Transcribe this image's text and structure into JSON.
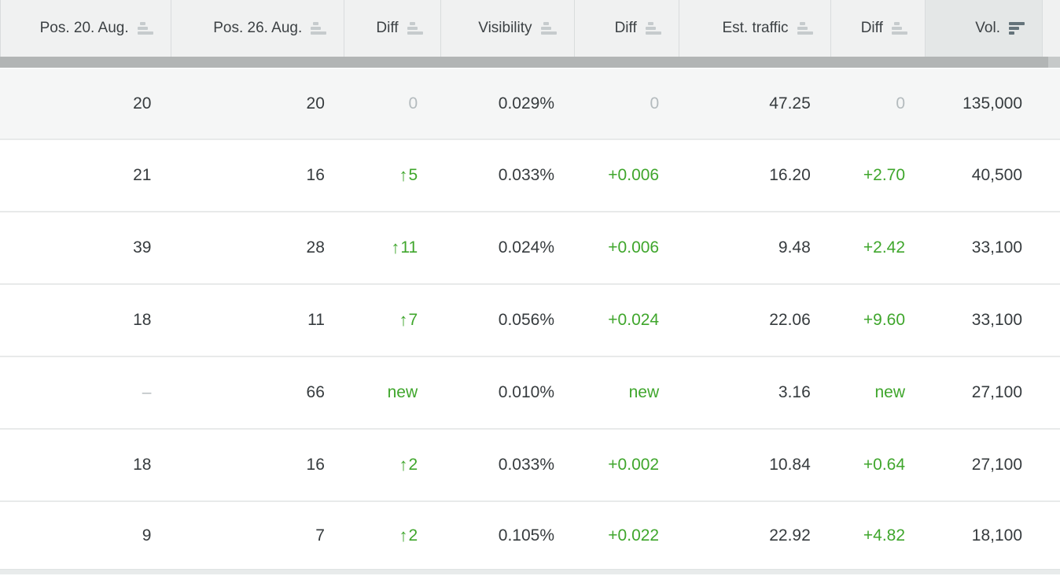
{
  "colors": {
    "positive_green": "#3fa62c",
    "muted_gray": "#b4bbbe",
    "header_bg": "#f0f1f1",
    "active_column_header_bg": "#e4e7e7",
    "highlighted_row_bg": "#f5f6f6",
    "scrollbar_thumb": "#b2b5b5",
    "text_dark": "#363b3e"
  },
  "icons": {
    "up_arrow_glyph": "↑",
    "inactive_sort_icon": "sort-ascending-bars",
    "active_sort_icon": "sort-descending-bars"
  },
  "table": {
    "columns": [
      {
        "label": "Pos. 20. Aug.",
        "sort": "inactive",
        "cell_name": "pos-aug20-cell"
      },
      {
        "label": "Pos. 26. Aug.",
        "sort": "inactive",
        "cell_name": "pos-aug26-cell"
      },
      {
        "label": "Diff",
        "sort": "inactive",
        "cell_name": "pos-diff-cell"
      },
      {
        "label": "Visibility",
        "sort": "inactive",
        "cell_name": "visibility-cell"
      },
      {
        "label": "Diff",
        "sort": "inactive",
        "cell_name": "visibility-diff-cell"
      },
      {
        "label": "Est. traffic",
        "sort": "inactive",
        "cell_name": "est-traffic-cell"
      },
      {
        "label": "Diff",
        "sort": "inactive",
        "cell_name": "traffic-diff-cell"
      },
      {
        "label": "Vol.",
        "sort": "active-desc",
        "cell_name": "volume-cell"
      }
    ],
    "rows": [
      {
        "cells": [
          {
            "v": "20",
            "t": "num"
          },
          {
            "v": "20",
            "t": "num"
          },
          {
            "v": "0",
            "t": "muted"
          },
          {
            "v": "0.029%",
            "t": "num"
          },
          {
            "v": "0",
            "t": "muted"
          },
          {
            "v": "47.25",
            "t": "num"
          },
          {
            "v": "0",
            "t": "muted"
          },
          {
            "v": "135,000",
            "t": "num"
          }
        ],
        "highlighted": true
      },
      {
        "cells": [
          {
            "v": "21",
            "t": "num"
          },
          {
            "v": "16",
            "t": "num"
          },
          {
            "v": "5",
            "t": "up"
          },
          {
            "v": "0.033%",
            "t": "num"
          },
          {
            "v": "+0.006",
            "t": "pos"
          },
          {
            "v": "16.20",
            "t": "num"
          },
          {
            "v": "+2.70",
            "t": "pos"
          },
          {
            "v": "40,500",
            "t": "num"
          }
        ],
        "highlighted": false
      },
      {
        "cells": [
          {
            "v": "39",
            "t": "num"
          },
          {
            "v": "28",
            "t": "num"
          },
          {
            "v": "11",
            "t": "up"
          },
          {
            "v": "0.024%",
            "t": "num"
          },
          {
            "v": "+0.006",
            "t": "pos"
          },
          {
            "v": "9.48",
            "t": "num"
          },
          {
            "v": "+2.42",
            "t": "pos"
          },
          {
            "v": "33,100",
            "t": "num"
          }
        ],
        "highlighted": false
      },
      {
        "cells": [
          {
            "v": "18",
            "t": "num"
          },
          {
            "v": "11",
            "t": "num"
          },
          {
            "v": "7",
            "t": "up"
          },
          {
            "v": "0.056%",
            "t": "num"
          },
          {
            "v": "+0.024",
            "t": "pos"
          },
          {
            "v": "22.06",
            "t": "num"
          },
          {
            "v": "+9.60",
            "t": "pos"
          },
          {
            "v": "33,100",
            "t": "num"
          }
        ],
        "highlighted": false
      },
      {
        "cells": [
          {
            "v": "–",
            "t": "muted"
          },
          {
            "v": "66",
            "t": "num"
          },
          {
            "v": "new",
            "t": "new"
          },
          {
            "v": "0.010%",
            "t": "num"
          },
          {
            "v": "new",
            "t": "new"
          },
          {
            "v": "3.16",
            "t": "num"
          },
          {
            "v": "new",
            "t": "new"
          },
          {
            "v": "27,100",
            "t": "num"
          }
        ],
        "highlighted": false
      },
      {
        "cells": [
          {
            "v": "18",
            "t": "num"
          },
          {
            "v": "16",
            "t": "num"
          },
          {
            "v": "2",
            "t": "up"
          },
          {
            "v": "0.033%",
            "t": "num"
          },
          {
            "v": "+0.002",
            "t": "pos"
          },
          {
            "v": "10.84",
            "t": "num"
          },
          {
            "v": "+0.64",
            "t": "pos"
          },
          {
            "v": "27,100",
            "t": "num"
          }
        ],
        "highlighted": false
      },
      {
        "cells": [
          {
            "v": "9",
            "t": "num"
          },
          {
            "v": "7",
            "t": "num"
          },
          {
            "v": "2",
            "t": "up"
          },
          {
            "v": "0.105%",
            "t": "num"
          },
          {
            "v": "+0.022",
            "t": "pos"
          },
          {
            "v": "22.92",
            "t": "num"
          },
          {
            "v": "+4.82",
            "t": "pos"
          },
          {
            "v": "18,100",
            "t": "num"
          }
        ],
        "highlighted": false
      }
    ]
  }
}
